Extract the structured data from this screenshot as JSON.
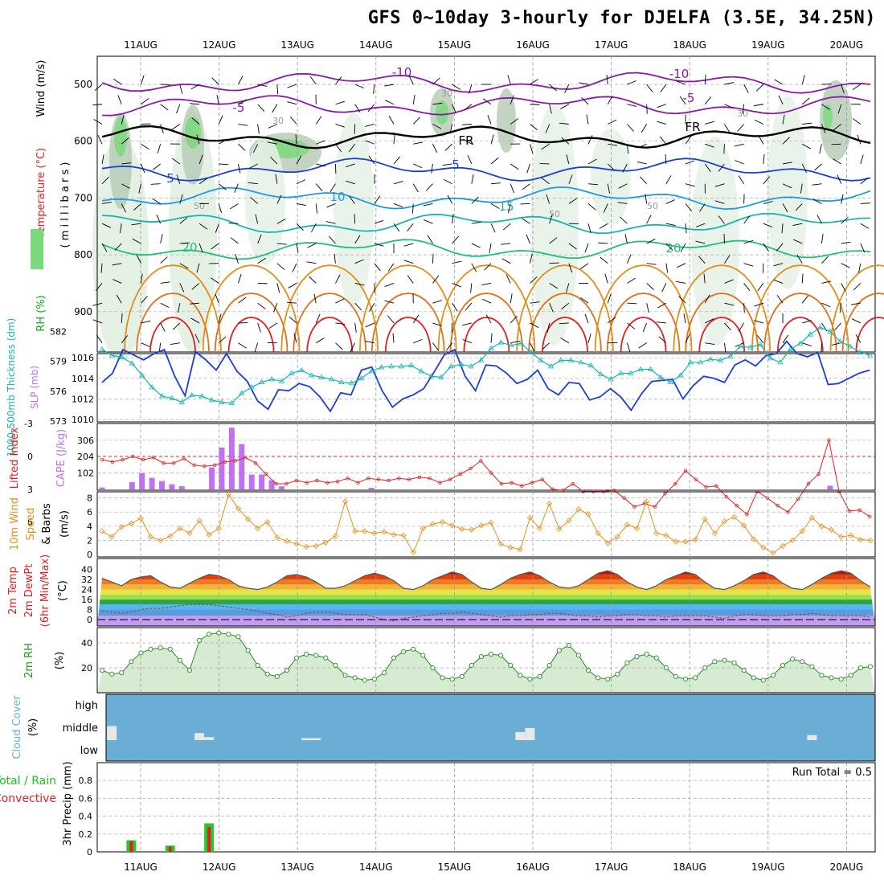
{
  "title": "GFS 0~10day 3-hourly for DJELFA (3.5E, 34.25N)",
  "dates": [
    "11AUG",
    "12AUG",
    "13AUG",
    "14AUG",
    "15AUG",
    "16AUG",
    "17AUG",
    "18AUG",
    "19AUG",
    "20AUG"
  ],
  "colors": {
    "purple": "#8a1aa8",
    "blue": "#1b3fd6",
    "lightblue": "#1e9be0",
    "cyan": "#18b5b0",
    "green": "#1fbf7a",
    "orange": "#e0901a",
    "red": "#e02020",
    "rh_fill": "#7bd97b",
    "cloud": "#6aaed6",
    "cape": "#c070f0",
    "wind10": "#e8901a"
  },
  "chart_data": [
    {
      "type": "contour",
      "panel": "upper-air",
      "ylabel_parts": [
        "RH (%)",
        "Temperature (°C)",
        "Wind (m/s)"
      ],
      "ylabel2": "( m i l l i b a r s )",
      "y_ticks": [
        500,
        600,
        700,
        800,
        900
      ],
      "ylim": [
        1000,
        450
      ],
      "contour_labels": [
        "-10",
        "-10",
        "-5",
        "-5",
        "FR",
        "FR",
        "5",
        "5",
        "10",
        "15",
        "20",
        "20",
        "30",
        "30",
        "30",
        "50",
        "50",
        "50"
      ],
      "isotherms": [
        {
          "label": "-10",
          "color_key": "purple",
          "p": 497
        },
        {
          "label": "-5",
          "color_key": "purple",
          "p": 537
        },
        {
          "label": "FR",
          "color_key": "black",
          "p": 593
        },
        {
          "label": "5",
          "color_key": "blue",
          "p": 650
        },
        {
          "label": "10",
          "color_key": "lightblue",
          "p": 700
        },
        {
          "label": "15",
          "color_key": "cyan",
          "p": 745
        },
        {
          "label": "20",
          "color_key": "green",
          "p": 790
        }
      ]
    },
    {
      "type": "line",
      "panel": "thickness-slp",
      "ylabel_left": "1000-500mb Thickness (dm)",
      "ylabel_right": "SLP (mb)",
      "y_ticks_left": [
        582,
        579,
        576,
        573
      ],
      "y_ticks_right": [
        1016,
        1014,
        1012,
        1010
      ],
      "series": [
        {
          "name": "SLP (mb)",
          "values": [
            1013.6,
            1014.5,
            1016.8,
            1016.3,
            1015.8,
            1016.4,
            1016.8,
            1014.2,
            1012.3,
            1016.6,
            1015.8,
            1014.8,
            1016.4,
            1014.7,
            1013.7,
            1011.8,
            1011.0,
            1012.9,
            1012.8,
            1013.5,
            1013.2,
            1012.2,
            1010.8,
            1012.6,
            1012.4,
            1014.8,
            1015.1,
            1012.8,
            1011.2,
            1012.0,
            1012.4,
            1013.0,
            1014.6,
            1016.3,
            1016.8,
            1014.2,
            1012.8,
            1015.3,
            1015.2,
            1014.5,
            1013.5,
            1013.9,
            1014.8,
            1013.0,
            1012.4,
            1013.6,
            1013.5,
            1011.9,
            1012.2,
            1013.0,
            1012.2,
            1010.9,
            1012.5,
            1013.7,
            1013.8,
            1013.9,
            1012.0,
            1013.3,
            1014.2,
            1014.0,
            1013.6,
            1015.3,
            1015.8,
            1015.2,
            1016.2,
            1016.4,
            1017.6,
            1016.4,
            1016.1,
            1016.5,
            1013.4,
            1013.5,
            1014.0,
            1014.5,
            1014.8
          ]
        },
        {
          "name": "1000-500mb Thickness (dm)",
          "values": [
            580.2,
            579.6,
            579.4,
            578.8,
            577.6,
            576.4,
            575.5,
            575.3,
            574.9,
            575.6,
            575.5,
            575.1,
            574.9,
            574.8,
            575.8,
            576.4,
            576.9,
            577.2,
            577.0,
            577.8,
            578.1,
            577.6,
            577.4,
            577.2,
            576.9,
            576.8,
            577.3,
            578.0,
            578.4,
            578.5,
            578.5,
            578.6,
            578.0,
            577.5,
            577.4,
            578.5,
            578.7,
            578.5,
            579.1,
            580.3,
            580.9,
            580.6,
            580.8,
            579.9,
            579.1,
            578.5,
            579.1,
            579.1,
            578.9,
            578.6,
            577.7,
            577.2,
            577.8,
            577.8,
            578.2,
            578.2,
            577.4,
            576.9,
            577.6,
            578.9,
            578.9,
            579.2,
            579.1,
            579.5,
            580.5,
            580.4,
            580.7,
            579.3,
            578.9,
            580.2,
            580.8,
            581.7,
            582.4,
            582.0,
            581.0,
            580.5,
            579.9,
            579.6
          ]
        }
      ]
    },
    {
      "type": "line+bar",
      "panel": "lifted-index-cape",
      "ylabel_left": "Lifted Index",
      "ylabel_right": "CAPE (J/kg)",
      "y_ticks_left": [
        -3,
        0,
        3,
        6
      ],
      "y_ticks_right": [
        306,
        204,
        102
      ],
      "series": [
        {
          "name": "Lifted Index",
          "values": [
            0.3,
            0.5,
            0.3,
            0.0,
            0.3,
            0.1,
            0.6,
            0.6,
            0.2,
            0.8,
            0.9,
            0.8,
            0.5,
            0.4,
            0.1,
            0.6,
            1.6,
            2.5,
            2.5,
            2.2,
            2.4,
            2.2,
            2.4,
            2.3,
            2.0,
            2.4,
            2.0,
            2.1,
            2.2,
            2.0,
            2.1,
            1.9,
            2.0,
            2.4,
            2.1,
            1.6,
            1.1,
            0.4,
            1.5,
            2.5,
            2.4,
            2.7,
            2.4,
            2.1,
            3.0,
            3.1,
            2.5,
            3.2,
            3.2,
            3.2,
            3.1,
            3.8,
            4.6,
            4.3,
            4.6,
            3.4,
            2.5,
            1.3,
            2.1,
            2.8,
            2.7,
            3.7,
            4.5,
            5.3,
            3.2,
            3.8,
            4.5,
            5.1,
            3.9,
            2.5,
            1.6,
            -1.5,
            3.2,
            5.0,
            4.9,
            5.5
          ]
        },
        {
          "name": "CAPE (J/kg)",
          "bars": [
            12,
            0,
            0,
            45,
            102,
            72,
            52,
            32,
            20,
            0,
            0,
            137,
            260,
            384,
            282,
            92,
            92,
            57,
            19,
            0,
            0,
            0,
            0,
            0,
            0,
            0,
            0,
            10,
            0,
            0,
            0,
            0,
            0,
            0,
            0,
            0,
            0,
            0,
            0,
            0,
            0,
            0,
            0,
            0,
            0,
            0,
            0,
            0,
            0,
            0,
            0,
            0,
            0,
            0,
            0,
            0,
            0,
            0,
            0,
            0,
            0,
            0,
            0,
            0,
            0,
            0,
            0,
            0,
            0,
            0,
            0,
            0,
            0,
            23,
            0,
            0,
            0,
            0
          ]
        }
      ]
    },
    {
      "type": "line",
      "panel": "wind10m",
      "ylabel": "10m Wind Speed & Barbs (m/s)",
      "y_ticks": [
        8,
        6,
        4,
        2,
        0
      ],
      "series": [
        {
          "name": "10m Wind Speed",
          "values": [
            3.3,
            2.5,
            3.9,
            4.4,
            5.1,
            2.5,
            2.0,
            2.6,
            3.7,
            3.0,
            4.8,
            2.8,
            3.7,
            8.5,
            6.5,
            5.0,
            3.7,
            4.6,
            2.4,
            1.9,
            1.5,
            1.1,
            1.2,
            1.7,
            2.6,
            7.5,
            3.3,
            3.3,
            3.0,
            3.2,
            2.8,
            2.7,
            0.3,
            3.7,
            4.3,
            4.6,
            4.1,
            3.6,
            3.5,
            4.1,
            4.5,
            1.5,
            1.0,
            0.7,
            5.2,
            3.7,
            7.2,
            3.6,
            4.8,
            6.4,
            5.7,
            3.0,
            1.6,
            2.5,
            4.2,
            3.7,
            7.5,
            3.0,
            2.7,
            1.8,
            1.8,
            2.1,
            5.0,
            3.0,
            4.7,
            5.3,
            4.1,
            2.2,
            1.0,
            0.2,
            1.2,
            2.0,
            3.3,
            5.2,
            4.0,
            3.5,
            2.5,
            2.7,
            2.1,
            2.0
          ]
        }
      ]
    },
    {
      "type": "area+line",
      "panel": "temp2m",
      "ylabel": "2m Temp 2m DewPt (6hr Min/Max) (°C)",
      "y_ticks": [
        40,
        32,
        24,
        16,
        8,
        0
      ],
      "series": [
        {
          "name": "2m Temp",
          "values": [
            33,
            30,
            27,
            32,
            34,
            35,
            30,
            26,
            25,
            29,
            33,
            36,
            35,
            32,
            27,
            25,
            24,
            26,
            30,
            35,
            36,
            34,
            30,
            25,
            25,
            27,
            31,
            35,
            37,
            35,
            31,
            25,
            24,
            27,
            32,
            35,
            38,
            36,
            30,
            25,
            24,
            28,
            33,
            36,
            38,
            35,
            30,
            26,
            25,
            27,
            32,
            37,
            39,
            36,
            30,
            26,
            24,
            27,
            32,
            35,
            38,
            36,
            30,
            25,
            24,
            27,
            31,
            36,
            38,
            35,
            29,
            25,
            24,
            28,
            33,
            37,
            39,
            37,
            31,
            26
          ]
        },
        {
          "name": "2m DewPt",
          "values": [
            7,
            6,
            5,
            6,
            8,
            9,
            9,
            10,
            11,
            12,
            12,
            12,
            11,
            10,
            9,
            8,
            7,
            5,
            4,
            2,
            3,
            5,
            6,
            6,
            5,
            4,
            4,
            4,
            2,
            0,
            -1,
            1,
            2,
            3,
            4,
            5,
            5,
            6,
            5,
            4,
            3,
            2,
            3,
            3,
            4,
            4,
            5,
            5,
            4,
            3,
            3,
            2,
            3,
            3,
            4,
            4,
            3,
            3,
            2,
            3,
            3,
            3,
            3,
            2,
            1,
            3,
            4,
            4,
            3,
            3,
            3,
            4,
            4,
            5,
            4,
            3,
            3,
            3,
            3,
            2
          ]
        }
      ]
    },
    {
      "type": "area",
      "panel": "rh2m",
      "ylabel": "2m RH (%)",
      "y_ticks": [
        40,
        20
      ],
      "series": [
        {
          "name": "2m RH",
          "values": [
            18,
            15,
            16,
            25,
            32,
            35,
            36,
            35,
            26,
            18,
            42,
            47,
            48,
            47,
            45,
            34,
            22,
            15,
            13,
            18,
            28,
            31,
            30,
            28,
            22,
            14,
            12,
            10,
            11,
            16,
            28,
            33,
            35,
            30,
            20,
            12,
            11,
            13,
            22,
            29,
            31,
            30,
            22,
            14,
            11,
            13,
            22,
            34,
            38,
            30,
            18,
            12,
            11,
            15,
            24,
            29,
            31,
            28,
            20,
            13,
            11,
            12,
            20,
            25,
            26,
            24,
            18,
            12,
            10,
            14,
            22,
            27,
            25,
            21,
            14,
            12,
            11,
            14,
            20,
            21
          ]
        }
      ]
    },
    {
      "type": "bar",
      "panel": "cloud",
      "ylabel": "Cloud Cover (%)",
      "y_ticks": [
        "high",
        "middle",
        "low"
      ],
      "series": [
        {
          "name": "cloud-high",
          "bars": []
        },
        {
          "name": "cloud-middle",
          "bars": [
            {
              "i": 1,
              "v": 0.7
            },
            {
              "i": 10,
              "v": 0.35
            },
            {
              "i": 11,
              "v": 0.15
            },
            {
              "i": 21,
              "v": 0.1
            },
            {
              "i": 22,
              "v": 0.1
            },
            {
              "i": 43,
              "v": 0.4
            },
            {
              "i": 44,
              "v": 0.6
            },
            {
              "i": 73,
              "v": 0.25
            }
          ]
        },
        {
          "name": "cloud-low",
          "bars": []
        }
      ]
    },
    {
      "type": "bar",
      "panel": "precip",
      "ylabel_total": "Total / Rain",
      "ylabel_conv": "Convective",
      "ylabel": "3hr Precip (mm)",
      "y_ticks": [
        0.8,
        0.6,
        0.4,
        0.2,
        0
      ],
      "run_total_label": "Run Total = 0.5",
      "series": [
        {
          "name": "Total / Rain",
          "bars": [
            {
              "i": 3,
              "v": 0.13
            },
            {
              "i": 7,
              "v": 0.07
            },
            {
              "i": 11,
              "v": 0.32
            }
          ]
        },
        {
          "name": "Convective",
          "bars": [
            {
              "i": 3,
              "v": 0.12
            },
            {
              "i": 7,
              "v": 0.06
            },
            {
              "i": 11,
              "v": 0.28
            }
          ]
        }
      ]
    }
  ]
}
